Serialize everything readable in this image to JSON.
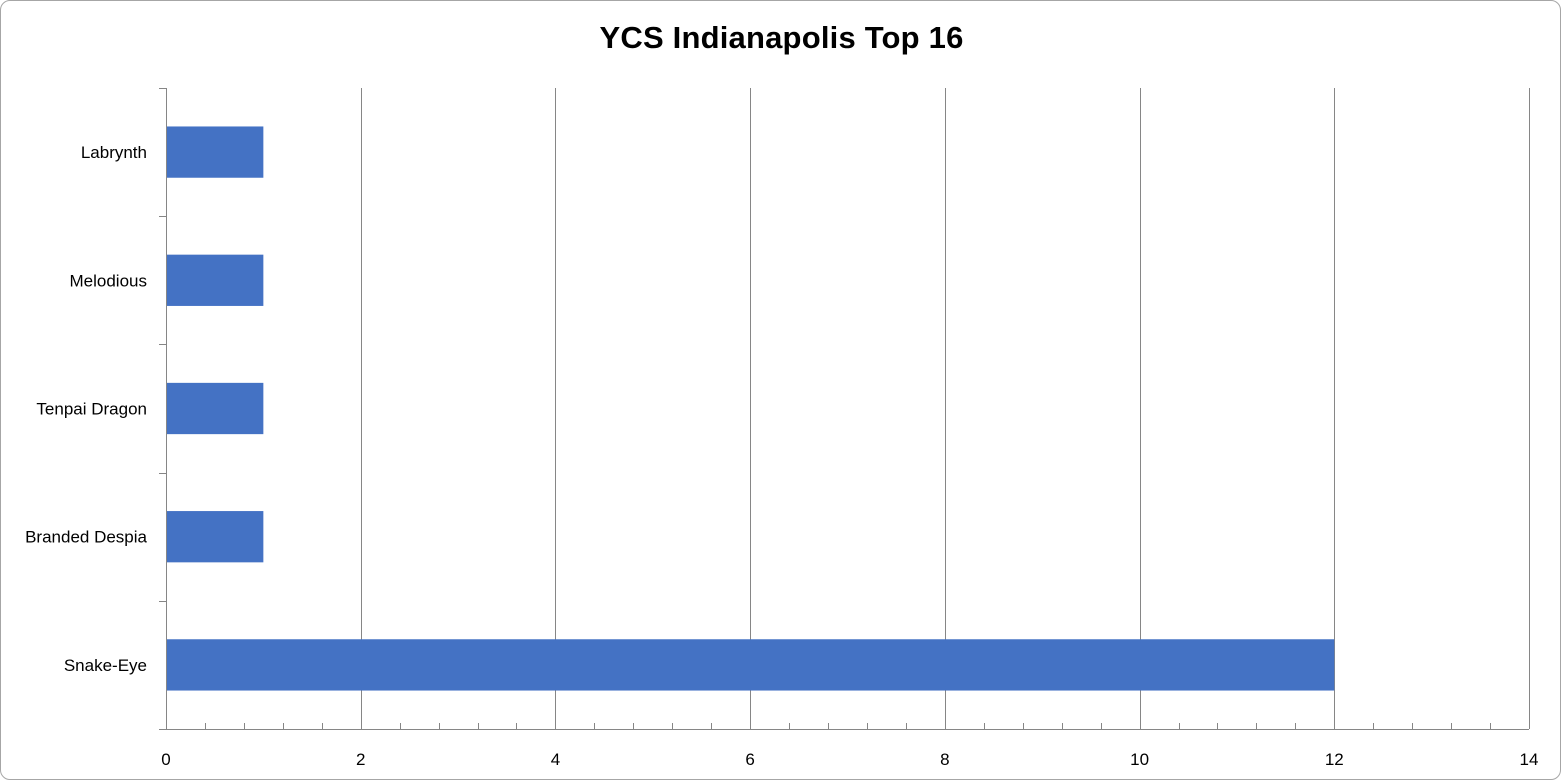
{
  "chart_data": {
    "type": "bar",
    "orientation": "horizontal",
    "title": "YCS Indianapolis Top 16",
    "categories": [
      "Labrynth",
      "Melodious",
      "Tenpai Dragon",
      "Branded Despia",
      "Snake-Eye"
    ],
    "values": [
      1,
      1,
      1,
      1,
      12
    ],
    "xlim": [
      0,
      14
    ],
    "x_ticks": [
      "0",
      "2",
      "4",
      "6",
      "8",
      "10",
      "12",
      "14"
    ],
    "grid": "vertical major gridlines",
    "legend": "none",
    "bar_color": "#4472C4",
    "gridline_color": "#868686",
    "axis_color": "#868686"
  }
}
